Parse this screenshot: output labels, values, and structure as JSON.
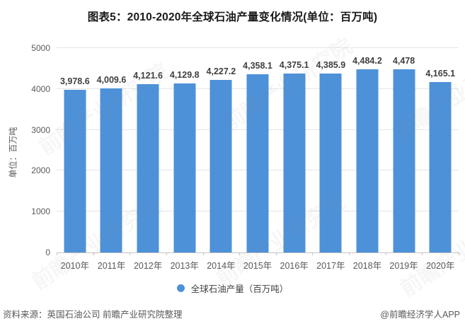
{
  "chart": {
    "title": "图表5：2010-2020年全球石油产量变化情况(单位：百万吨)",
    "y_axis_title": "单位：百万吨",
    "legend": "全球石油产量（百万吨）"
  },
  "footer": {
    "source": "资料来源：英国石油公司 前瞻产业研究院整理",
    "credit": "@前瞻经济学人APP"
  },
  "watermark_text": "前瞻产业研究院",
  "colors": {
    "bar": "#4d91d9",
    "gridline": "#e5e5e5",
    "axis_line": "#c4c4c4",
    "tick_text": "#595959",
    "data_label": "#3f3f3f"
  },
  "chart_data": {
    "type": "bar",
    "title": "图表5：2010-2020年全球石油产量变化情况(单位：百万吨)",
    "categories": [
      "2010年",
      "2011年",
      "2012年",
      "2013年",
      "2014年",
      "2015年",
      "2016年",
      "2017年",
      "2018年",
      "2019年",
      "2020年"
    ],
    "values": [
      3978.6,
      4009.6,
      4121.6,
      4129.8,
      4227.2,
      4358.1,
      4375.1,
      4385.9,
      4484.2,
      4478,
      4165.1
    ],
    "value_labels": [
      "3,978.6",
      "4,009.6",
      "4,121.6",
      "4,129.8",
      "4,227.2",
      "4,358.1",
      "4,375.1",
      "4,385.9",
      "4,484.2",
      "4,478",
      "4,165.1"
    ],
    "xlabel": "",
    "ylabel": "单位：百万吨",
    "ylim": [
      0,
      5000
    ],
    "yticks": [
      0,
      1000,
      2000,
      3000,
      4000,
      5000
    ],
    "grid": true,
    "legend_position": "bottom",
    "legend_entries": [
      "全球石油产量（百万吨）"
    ]
  }
}
